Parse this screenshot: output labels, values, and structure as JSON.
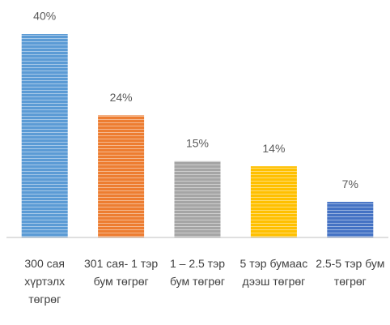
{
  "chart_data": {
    "type": "bar",
    "categories": [
      "300 сая хүртэлх төгрөг",
      "301 сая- 1 тэр бум төгрөг",
      "1 – 2.5 тэр бум төгрөг",
      "5 тэр бумаас дээш төгрөг",
      "2.5-5 тэр бум төгрөг"
    ],
    "values": [
      40,
      24,
      15,
      14,
      7
    ],
    "value_labels": [
      "40%",
      "24%",
      "15%",
      "14%",
      "7%"
    ],
    "colors": [
      "#5b9bd5",
      "#ed7d31",
      "#a5a5a5",
      "#ffc000",
      "#4472c4"
    ],
    "ylim": [
      0,
      40
    ]
  }
}
